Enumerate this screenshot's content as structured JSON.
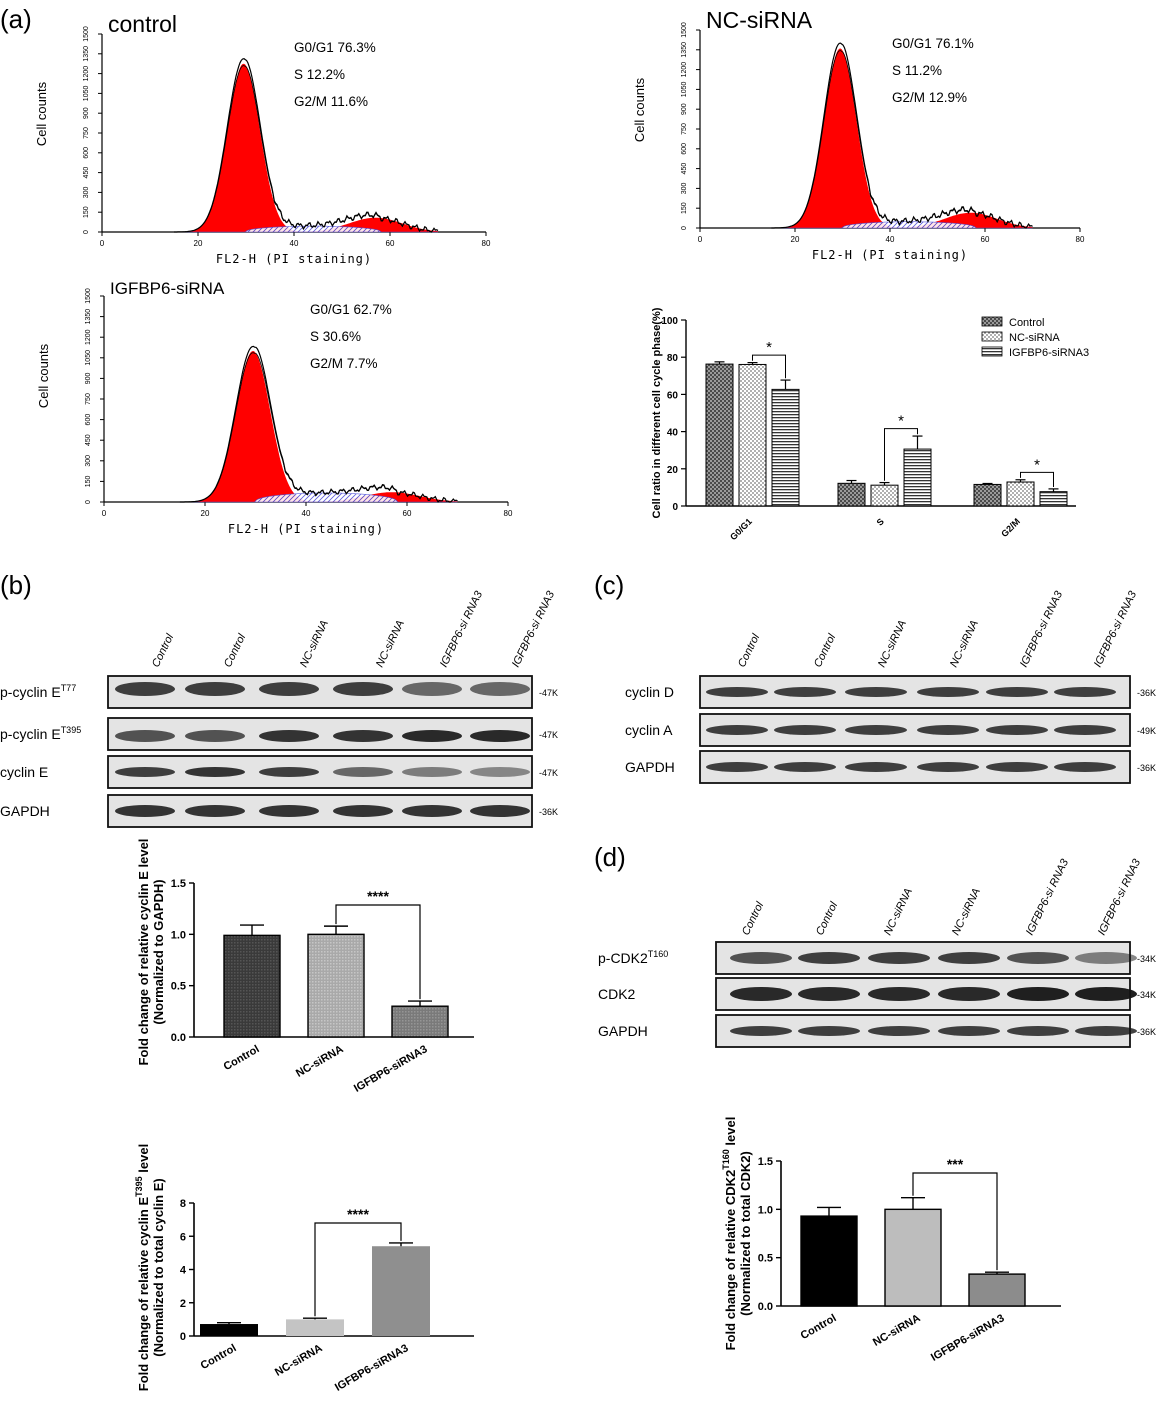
{
  "panels": {
    "a": "(a)",
    "b": "(b)",
    "c": "(c)",
    "d": "(d)"
  },
  "flow": [
    {
      "name": "control",
      "stats": [
        "G0/G1 76.3%",
        "S 12.2%",
        "G2/M 11.6%"
      ],
      "xlabel": "FL2-H (PI staining)",
      "ylabel": "Cell counts",
      "xticks": [
        "0",
        "20",
        "40",
        "60",
        "80"
      ],
      "yticks": [
        "0",
        "150",
        "300",
        "450",
        "600",
        "750",
        "900",
        "1050",
        "1200",
        "1350",
        "1500"
      ],
      "peak": 1275
    },
    {
      "name": "NC-siRNA",
      "stats": [
        "G0/G1 76.1%",
        "S 11.2%",
        "G2/M 12.9%"
      ],
      "xlabel": "FL2-H (PI staining)",
      "ylabel": "Cell counts",
      "xticks": [
        "0",
        "20",
        "40",
        "60",
        "80"
      ],
      "yticks": [
        "0",
        "150",
        "300",
        "450",
        "600",
        "750",
        "900",
        "1050",
        "1200",
        "1350",
        "1500"
      ],
      "peak": 1360
    },
    {
      "name": "IGFBP6-siRNA",
      "stats": [
        "G0/G1 62.7%",
        "S 30.6%",
        "G2/M 7.7%"
      ],
      "xlabel": "FL2-H (PI staining)",
      "ylabel": "Cell counts",
      "xticks": [
        "0",
        "20",
        "40",
        "60",
        "80"
      ],
      "yticks": [
        "0",
        "150",
        "300",
        "450",
        "600",
        "750",
        "900",
        "1050",
        "1200",
        "1350",
        "1500"
      ],
      "peak": 1100
    }
  ],
  "chart_data": [
    {
      "type": "bar",
      "id": "cycle-phase",
      "ylabel": "Cell ratio in different cell cycle phase(%)",
      "categories": [
        "G0/G1",
        "S",
        "G2/M"
      ],
      "ylim": [
        0,
        100
      ],
      "yticks": [
        "0",
        "20",
        "40",
        "60",
        "80",
        "100"
      ],
      "legend": "top-right",
      "series": [
        {
          "name": "Control",
          "values": [
            76.3,
            12.2,
            11.6
          ],
          "errors": [
            1.2,
            1.5,
            0.5
          ]
        },
        {
          "name": "NC-siRNA",
          "values": [
            76.1,
            11.2,
            12.9
          ],
          "errors": [
            1.0,
            1.4,
            1.2
          ]
        },
        {
          "name": "IGFBP6-siRNA3",
          "values": [
            62.7,
            30.6,
            7.7
          ],
          "errors": [
            5.0,
            7.0,
            1.5
          ]
        }
      ],
      "significance": [
        "*",
        "*",
        "*"
      ]
    },
    {
      "type": "bar",
      "id": "cyclin-e",
      "ylabel": [
        "Fold change of relative cyclin E level",
        "(Normalized to GAPDH)"
      ],
      "categories": [
        "Control",
        "NC-siRNA",
        "IGFBP6-siRNA3"
      ],
      "values": [
        0.99,
        1.0,
        0.3
      ],
      "errors": [
        0.1,
        0.08,
        0.05
      ],
      "ylim": [
        0,
        1.5
      ],
      "yticks": [
        "0.0",
        "0.5",
        "1.0",
        "1.5"
      ],
      "significance": "****"
    },
    {
      "type": "bar",
      "id": "p-cyclin-e",
      "ylabel": [
        "Fold change of relative cyclin E",
        "T395",
        "level",
        "(Normalized to total cyclin E)"
      ],
      "categories": [
        "Control",
        "NC-siRNA",
        "IGFBP6-siRNA3"
      ],
      "values": [
        0.72,
        1.0,
        5.4
      ],
      "errors": [
        0.08,
        0.07,
        0.2
      ],
      "ylim": [
        0,
        8
      ],
      "yticks": [
        "0",
        "2",
        "4",
        "6",
        "8"
      ],
      "significance": "****"
    },
    {
      "type": "bar",
      "id": "p-cdk2",
      "ylabel": [
        "Fold change of relative CDK2",
        "T160",
        "level",
        "(Normalized to total CDK2)"
      ],
      "categories": [
        "Control",
        "NC-siRNA",
        "IGFBP6-siRNA3"
      ],
      "values": [
        0.93,
        1.0,
        0.33
      ],
      "errors": [
        0.09,
        0.12,
        0.02
      ],
      "ylim": [
        0,
        1.5
      ],
      "yticks": [
        "0.0",
        "0.5",
        "1.0",
        "1.5"
      ],
      "significance": "***"
    }
  ],
  "blots": {
    "lanes_b": [
      "Control",
      "Control",
      "NC-siRNA",
      "NC-siRNA",
      "IGFBP6-si RNA3",
      "IGFBP6-si RNA3"
    ],
    "lanes_c": [
      "Control",
      "Control",
      "NC-siRNA",
      "NC-siRNA",
      "IGFBP6-si RNA3",
      "IGFBP6-si RNA3"
    ],
    "lanes_d": [
      "Control",
      "Control",
      "NC-siRNA",
      "NC-siRNA",
      "IGFBP6-si RNA3",
      "IGFBP6-si RNA3"
    ],
    "rows_b": [
      {
        "label": "p-cyclin E",
        "sup": "T77",
        "size": "-47K"
      },
      {
        "label": "p-cyclin E",
        "sup": "T395",
        "size": "-47K"
      },
      {
        "label": "cyclin E",
        "sup": "",
        "size": "-47K"
      },
      {
        "label": "GAPDH",
        "sup": "",
        "size": "-36K"
      }
    ],
    "rows_c": [
      {
        "label": "cyclin D",
        "sup": "",
        "size": "-36K"
      },
      {
        "label": "cyclin A",
        "sup": "",
        "size": "-49K"
      },
      {
        "label": "GAPDH",
        "sup": "",
        "size": "-36K"
      }
    ],
    "rows_d": [
      {
        "label": "p-CDK2",
        "sup": "T160",
        "size": "-34K"
      },
      {
        "label": "CDK2",
        "sup": "",
        "size": "-34K"
      },
      {
        "label": "GAPDH",
        "sup": "",
        "size": "-36K"
      }
    ]
  },
  "colors": {
    "flow_fill": "#ff0000",
    "control_bar": "#000000",
    "nc_bar": "#bdbdbd",
    "kd_bar": "#8c8c8c"
  }
}
